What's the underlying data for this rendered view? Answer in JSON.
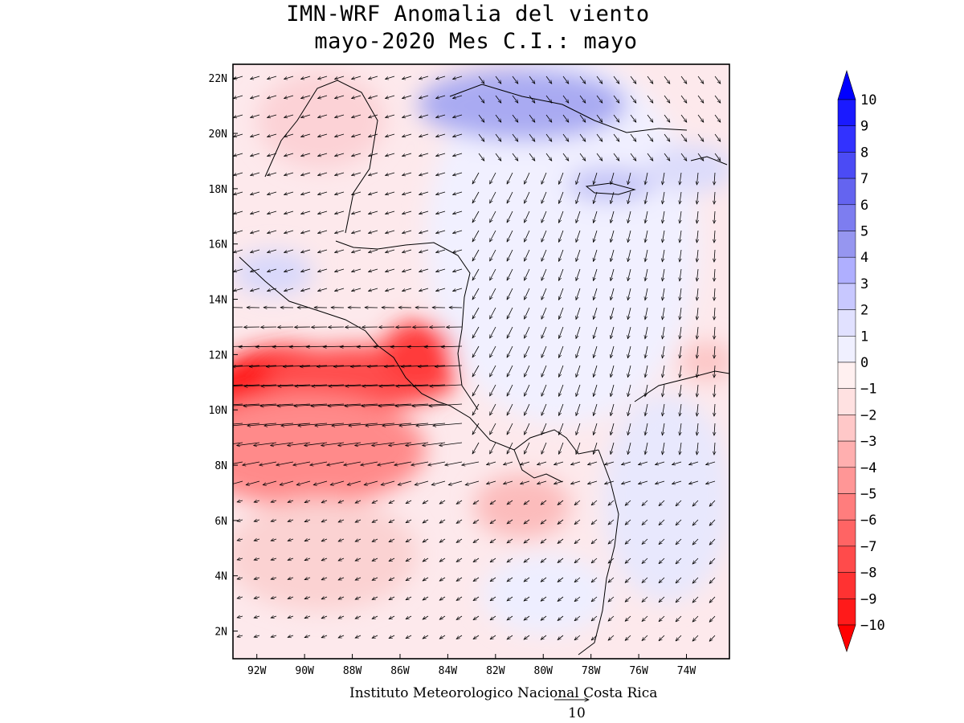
{
  "title_line1": "IMN-WRF Anomalia del viento",
  "title_line2": "mayo-2020 Mes C.I.: mayo",
  "credit": "Instituto Meteorologico Nacional Costa Rica",
  "reference_vector_label": "10",
  "map": {
    "lat_labels": [
      "22N",
      "20N",
      "18N",
      "16N",
      "14N",
      "12N",
      "10N",
      "8N",
      "6N",
      "4N",
      "2N"
    ],
    "lon_labels": [
      "92W",
      "90W",
      "88W",
      "86W",
      "84W",
      "82W",
      "80W",
      "78W",
      "76W",
      "74W"
    ],
    "lat_range": [
      1,
      22.5
    ],
    "lon_range": [
      -93,
      -72.2
    ]
  },
  "colorbar": {
    "labels": [
      "10",
      "9",
      "8",
      "7",
      "6",
      "5",
      "4",
      "3",
      "2",
      "1",
      "0",
      "−1",
      "−2",
      "−3",
      "−4",
      "−5",
      "−6",
      "−7",
      "−8",
      "−9",
      "−10"
    ],
    "colors": [
      "#1a1aff",
      "#3232ff",
      "#4b4bf5",
      "#6464f0",
      "#7d7df0",
      "#9696f0",
      "#afafff",
      "#c8c8ff",
      "#e1e1ff",
      "#f0f0ff",
      "#fff0f0",
      "#ffe1e1",
      "#ffc8c8",
      "#ffafaf",
      "#ff9696",
      "#ff7d7d",
      "#ff6464",
      "#ff4b4b",
      "#ff3232",
      "#ff1a1a"
    ],
    "max_color": "#0000ff",
    "min_color": "#ff0000"
  },
  "colors": {
    "positive_anomaly": "#6e6ef0",
    "negative_anomaly": "#ff2020",
    "neutral": "#f3f3ff"
  }
}
